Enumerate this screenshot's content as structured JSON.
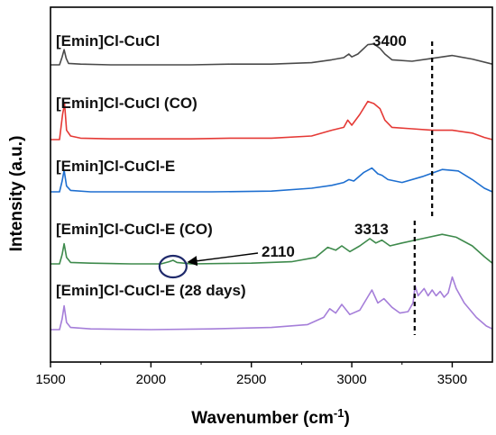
{
  "chart_data": {
    "type": "line",
    "xlabel": "Wavenumber (cm",
    "xlabel_sup": "-1",
    "xlabel_close": ")",
    "ylabel": "Intensity (a.u.)",
    "xlim": [
      1500,
      3700
    ],
    "xticks": [
      1500,
      2000,
      2500,
      3000,
      3500
    ],
    "y_ticks_shown": false,
    "series": [
      {
        "name": "[Emin]Cl-CuCl",
        "color": "#4a4a4a",
        "points": [
          [
            1500,
            0.05
          ],
          [
            1545,
            0.05
          ],
          [
            1558,
            0.16
          ],
          [
            1568,
            0.26
          ],
          [
            1578,
            0.14
          ],
          [
            1590,
            0.07
          ],
          [
            1650,
            0.06
          ],
          [
            1800,
            0.05
          ],
          [
            2000,
            0.05
          ],
          [
            2200,
            0.05
          ],
          [
            2400,
            0.06
          ],
          [
            2600,
            0.06
          ],
          [
            2800,
            0.08
          ],
          [
            2900,
            0.12
          ],
          [
            2960,
            0.15
          ],
          [
            2985,
            0.2
          ],
          [
            3000,
            0.16
          ],
          [
            3030,
            0.2
          ],
          [
            3080,
            0.33
          ],
          [
            3110,
            0.34
          ],
          [
            3140,
            0.28
          ],
          [
            3165,
            0.2
          ],
          [
            3200,
            0.12
          ],
          [
            3300,
            0.1
          ],
          [
            3400,
            0.14
          ],
          [
            3500,
            0.18
          ],
          [
            3600,
            0.13
          ],
          [
            3700,
            0.06
          ]
        ]
      },
      {
        "name": "[Emin]Cl-CuCl (CO)",
        "color": "#e53935",
        "points": [
          [
            1500,
            0.05
          ],
          [
            1545,
            0.05
          ],
          [
            1560,
            0.4
          ],
          [
            1570,
            0.55
          ],
          [
            1580,
            0.18
          ],
          [
            1600,
            0.1
          ],
          [
            1650,
            0.07
          ],
          [
            1800,
            0.06
          ],
          [
            2000,
            0.06
          ],
          [
            2200,
            0.06
          ],
          [
            2400,
            0.07
          ],
          [
            2600,
            0.07
          ],
          [
            2800,
            0.1
          ],
          [
            2900,
            0.18
          ],
          [
            2960,
            0.22
          ],
          [
            2980,
            0.32
          ],
          [
            3000,
            0.25
          ],
          [
            3040,
            0.4
          ],
          [
            3080,
            0.58
          ],
          [
            3110,
            0.55
          ],
          [
            3140,
            0.48
          ],
          [
            3165,
            0.32
          ],
          [
            3200,
            0.22
          ],
          [
            3300,
            0.2
          ],
          [
            3400,
            0.18
          ],
          [
            3500,
            0.18
          ],
          [
            3600,
            0.14
          ],
          [
            3660,
            0.08
          ],
          [
            3700,
            0.05
          ]
        ]
      },
      {
        "name": "[Emin]Cl-CuCl-E",
        "color": "#1e6fd0",
        "points": [
          [
            1500,
            0.05
          ],
          [
            1545,
            0.05
          ],
          [
            1558,
            0.2
          ],
          [
            1568,
            0.35
          ],
          [
            1580,
            0.13
          ],
          [
            1600,
            0.07
          ],
          [
            1700,
            0.05
          ],
          [
            2000,
            0.05
          ],
          [
            2300,
            0.05
          ],
          [
            2600,
            0.06
          ],
          [
            2800,
            0.1
          ],
          [
            2900,
            0.14
          ],
          [
            2960,
            0.18
          ],
          [
            2985,
            0.22
          ],
          [
            3010,
            0.2
          ],
          [
            3060,
            0.32
          ],
          [
            3100,
            0.38
          ],
          [
            3130,
            0.3
          ],
          [
            3150,
            0.28
          ],
          [
            3180,
            0.22
          ],
          [
            3250,
            0.18
          ],
          [
            3350,
            0.26
          ],
          [
            3450,
            0.36
          ],
          [
            3530,
            0.34
          ],
          [
            3600,
            0.22
          ],
          [
            3660,
            0.1
          ],
          [
            3700,
            0.05
          ]
        ]
      },
      {
        "name": "[Emin]Cl-CuCl-E (CO)",
        "color": "#3e8a4c",
        "points": [
          [
            1500,
            0.05
          ],
          [
            1545,
            0.05
          ],
          [
            1558,
            0.18
          ],
          [
            1568,
            0.33
          ],
          [
            1580,
            0.14
          ],
          [
            1600,
            0.07
          ],
          [
            1700,
            0.06
          ],
          [
            1900,
            0.05
          ],
          [
            2050,
            0.05
          ],
          [
            2090,
            0.08
          ],
          [
            2110,
            0.1
          ],
          [
            2130,
            0.07
          ],
          [
            2200,
            0.05
          ],
          [
            2500,
            0.06
          ],
          [
            2700,
            0.08
          ],
          [
            2820,
            0.14
          ],
          [
            2880,
            0.28
          ],
          [
            2920,
            0.24
          ],
          [
            2950,
            0.3
          ],
          [
            2990,
            0.22
          ],
          [
            3040,
            0.3
          ],
          [
            3090,
            0.4
          ],
          [
            3120,
            0.34
          ],
          [
            3150,
            0.38
          ],
          [
            3190,
            0.3
          ],
          [
            3250,
            0.34
          ],
          [
            3350,
            0.4
          ],
          [
            3450,
            0.46
          ],
          [
            3520,
            0.42
          ],
          [
            3600,
            0.3
          ],
          [
            3660,
            0.15
          ],
          [
            3700,
            0.06
          ]
        ]
      },
      {
        "name": "[Emin]Cl-CuCl-E (28 days)",
        "color": "#a57ed9",
        "points": [
          [
            1500,
            0.05
          ],
          [
            1545,
            0.05
          ],
          [
            1558,
            0.2
          ],
          [
            1568,
            0.38
          ],
          [
            1580,
            0.15
          ],
          [
            1600,
            0.08
          ],
          [
            1700,
            0.06
          ],
          [
            2000,
            0.05
          ],
          [
            2300,
            0.06
          ],
          [
            2600,
            0.08
          ],
          [
            2780,
            0.12
          ],
          [
            2860,
            0.22
          ],
          [
            2890,
            0.34
          ],
          [
            2920,
            0.28
          ],
          [
            2950,
            0.4
          ],
          [
            2990,
            0.26
          ],
          [
            3040,
            0.32
          ],
          [
            3100,
            0.6
          ],
          [
            3130,
            0.42
          ],
          [
            3160,
            0.48
          ],
          [
            3200,
            0.36
          ],
          [
            3240,
            0.28
          ],
          [
            3280,
            0.3
          ],
          [
            3305,
            0.42
          ],
          [
            3315,
            0.66
          ],
          [
            3330,
            0.52
          ],
          [
            3360,
            0.62
          ],
          [
            3380,
            0.52
          ],
          [
            3400,
            0.6
          ],
          [
            3420,
            0.52
          ],
          [
            3440,
            0.58
          ],
          [
            3460,
            0.5
          ],
          [
            3480,
            0.56
          ],
          [
            3500,
            0.78
          ],
          [
            3520,
            0.62
          ],
          [
            3560,
            0.42
          ],
          [
            3620,
            0.22
          ],
          [
            3670,
            0.1
          ],
          [
            3700,
            0.06
          ]
        ]
      }
    ],
    "annotations": [
      {
        "text": "3400",
        "x": 3400
      },
      {
        "text": "3313",
        "x": 3313
      },
      {
        "text": "2110",
        "x": 2110
      }
    ]
  }
}
